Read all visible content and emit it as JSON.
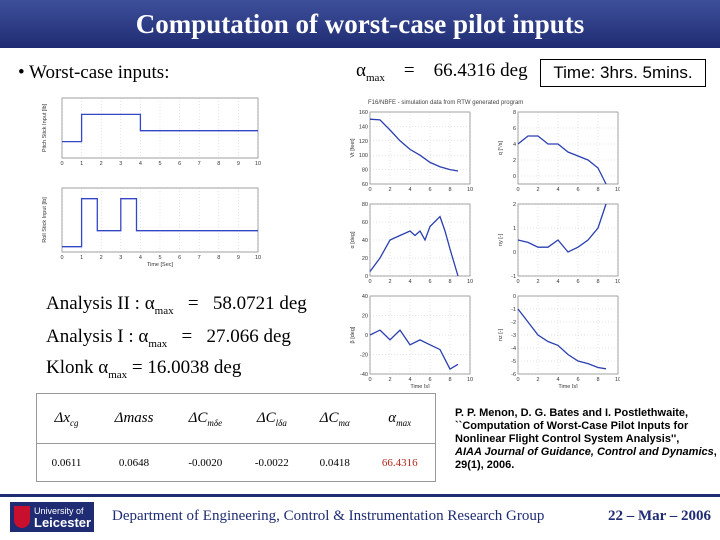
{
  "title": "Computation of worst-case pilot inputs",
  "bullet": "• Worst-case inputs:",
  "alpha_max": {
    "symbol": "α",
    "subscript": "max",
    "equals": "=",
    "value": "66.4316",
    "unit": "deg"
  },
  "time": "Time: 3hrs. 5mins.",
  "figure_note": "F16/NBFE - simulation data from RTW generated program",
  "analyses": [
    {
      "label": "Analysis II :",
      "symbol": "α",
      "subscript": "max",
      "equals": "=",
      "value": "58.0721",
      "unit": "deg"
    },
    {
      "label": "Analysis I :",
      "symbol": "α",
      "subscript": "max",
      "equals": "=",
      "value": "27.066",
      "unit": "deg"
    },
    {
      "label": "Klonk",
      "symbol": "α",
      "subscript": "max",
      "equals": "=",
      "value": "16.0038",
      "unit": "deg"
    }
  ],
  "table": {
    "headers": [
      {
        "symbol": "Δ",
        "var": "x",
        "sub": "cg"
      },
      {
        "symbol": "Δ",
        "var": "mass",
        "sub": ""
      },
      {
        "symbol": "Δ",
        "var": "C",
        "sub": "mδe"
      },
      {
        "symbol": "Δ",
        "var": "C",
        "sub": "lδa"
      },
      {
        "symbol": "Δ",
        "var": "C",
        "sub": "mα"
      },
      {
        "symbol": "α",
        "var": "",
        "sub": "max"
      }
    ],
    "values": [
      "0.0611",
      "0.0648",
      "-0.0020",
      "-0.0022",
      "0.0418",
      "66.4316"
    ],
    "highlight_color": "#b0291b"
  },
  "reference": {
    "authors": "P. P. Menon, D. G. Bates and I. Postlethwaite,",
    "title": "``Computation of Worst-Case Pilot Inputs for Nonlinear Flight Control System Analysis'',",
    "journal": "AIAA Journal of Guidance, Control and Dynamics",
    "details": ", 29(1), 2006."
  },
  "footer": {
    "logo_line1": "University of",
    "logo_line2": "Leicester",
    "department": "Department of Engineering, Control & Instrumentation Research Group",
    "date": "22 – Mar – 2006"
  },
  "chart_data": [
    {
      "type": "line",
      "ylabel": "Pitch Stick Input [lb]",
      "xlabel": "",
      "x": [
        0,
        1,
        1,
        4,
        4,
        10
      ],
      "y": [
        0,
        0,
        5,
        5,
        2,
        2
      ],
      "ylim": [
        -3,
        8
      ],
      "xlim": [
        0,
        10
      ],
      "color": "#3346c8",
      "xticks": [
        0,
        1,
        2,
        3,
        4,
        5,
        6,
        7,
        8,
        9,
        10
      ]
    },
    {
      "type": "line",
      "ylabel": "Roll Stick Input [lb]",
      "xlabel": "Time [Sec]",
      "x": [
        0,
        1,
        1,
        1.8,
        1.8,
        3,
        3,
        3.8,
        3.8,
        10
      ],
      "y": [
        -5,
        -5,
        4,
        4,
        -2,
        -2,
        4,
        4,
        -2,
        -2
      ],
      "ylim": [
        -6,
        6
      ],
      "xlim": [
        0,
        10
      ],
      "color": "#3346c8",
      "xticks": [
        0,
        1,
        2,
        3,
        4,
        5,
        6,
        7,
        8,
        9,
        10
      ]
    },
    {
      "type": "line",
      "ylabel": "Vt [feet]",
      "xlabel": "",
      "x": [
        0,
        1,
        2,
        3,
        4,
        5,
        6,
        7,
        8,
        8.8
      ],
      "y": [
        150,
        149,
        135,
        120,
        108,
        100,
        90,
        84,
        80,
        78
      ],
      "ylim": [
        60,
        160
      ],
      "xlim": [
        0,
        10
      ],
      "yticks": [
        60,
        80,
        100,
        120,
        140,
        160
      ],
      "xticks": [
        0,
        2,
        4,
        6,
        8,
        10
      ]
    },
    {
      "type": "line",
      "ylabel": "α [deg]",
      "xlabel": "",
      "x": [
        0,
        1,
        2,
        3,
        4,
        4.5,
        5,
        5.5,
        6,
        7,
        7.5,
        8,
        8.8
      ],
      "y": [
        5,
        20,
        40,
        45,
        50,
        45,
        50,
        40,
        55,
        66,
        50,
        30,
        0
      ],
      "ylim": [
        0,
        80
      ],
      "xlim": [
        0,
        10
      ],
      "yticks": [
        0,
        20,
        40,
        60,
        80
      ],
      "xticks": [
        0,
        2,
        4,
        6,
        8,
        10
      ]
    },
    {
      "type": "line",
      "ylabel": "β [deg]",
      "xlabel": "Time [s]",
      "x": [
        0,
        1,
        2,
        3,
        4,
        5,
        6,
        7,
        8,
        8.8
      ],
      "y": [
        0,
        5,
        -5,
        5,
        -10,
        -5,
        -10,
        -15,
        -35,
        -30
      ],
      "ylim": [
        -40,
        40
      ],
      "xlim": [
        0,
        10
      ],
      "yticks": [
        -40,
        -20,
        0,
        20,
        40
      ],
      "xticks": [
        0,
        2,
        4,
        6,
        8,
        10
      ]
    },
    {
      "type": "line",
      "ylabel": "q [°/s]",
      "xlabel": "",
      "x": [
        0,
        1,
        2,
        3,
        4,
        5,
        6,
        7,
        8,
        8.8
      ],
      "y": [
        4,
        5,
        5,
        4,
        4,
        3,
        2.5,
        2,
        1,
        -1
      ],
      "ylim": [
        -1,
        8
      ],
      "xlim": [
        0,
        10
      ],
      "yticks": [
        0,
        2,
        4,
        6,
        8
      ],
      "xticks": [
        0,
        2,
        4,
        6,
        8,
        10
      ]
    },
    {
      "type": "line",
      "ylabel": "ny [-]",
      "xlabel": "",
      "x": [
        0,
        1,
        2,
        3,
        4,
        5,
        6,
        7,
        8,
        8.8
      ],
      "y": [
        0.5,
        0.4,
        0.2,
        0.2,
        0.5,
        0,
        0.2,
        0.5,
        1,
        2
      ],
      "ylim": [
        -1,
        2
      ],
      "xlim": [
        0,
        10
      ],
      "yticks": [
        -1,
        0,
        1,
        2
      ],
      "xticks": [
        0,
        2,
        4,
        6,
        8,
        10
      ]
    },
    {
      "type": "line",
      "ylabel": "nz [-]",
      "xlabel": "Time [s]",
      "x": [
        0,
        1,
        2,
        3,
        4,
        5,
        6,
        7,
        8,
        8.8
      ],
      "y": [
        -1,
        -2,
        -3,
        -3.5,
        -3.8,
        -4.5,
        -5,
        -5.2,
        -5.5,
        -5.6
      ],
      "ylim": [
        -6,
        0
      ],
      "xlim": [
        0,
        10
      ],
      "yticks": [
        -6,
        -5,
        -4,
        -3,
        -2,
        -1,
        0
      ],
      "xticks": [
        0,
        2,
        4,
        6,
        8,
        10
      ]
    }
  ]
}
